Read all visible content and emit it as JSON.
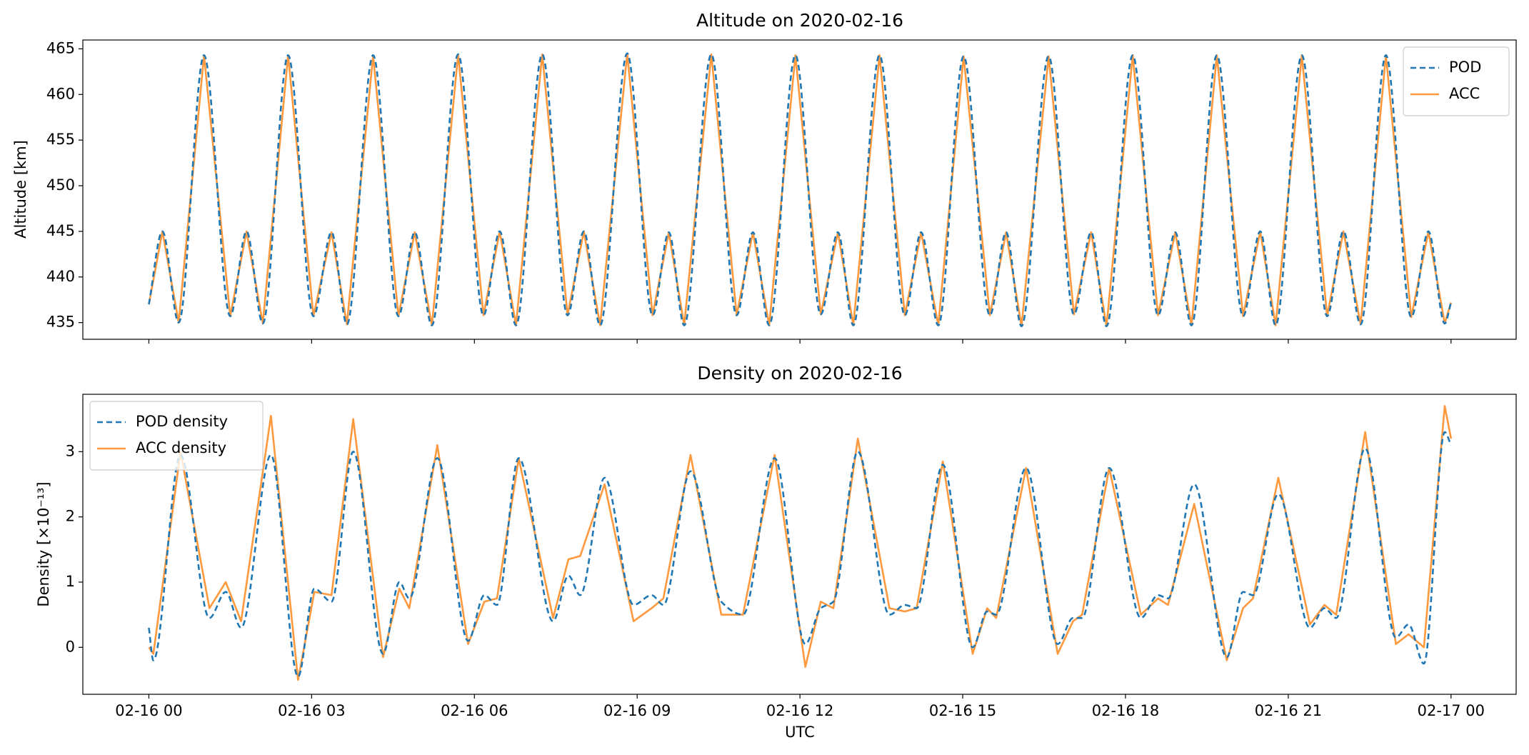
{
  "chart_data": [
    {
      "type": "line",
      "title": "Altitude on 2020-02-16",
      "ylabel": "Altitude [km]",
      "x": [
        "2020-02-16 00:00",
        "2020-02-16 00:15",
        "2020-02-16 00:33",
        "2020-02-16 01:01",
        "2020-02-16 01:30",
        "2020-02-16 01:48",
        "2020-02-16 02:06",
        "2020-02-16 02:34",
        "2020-02-16 03:02",
        "2020-02-16 03:22",
        "2020-02-16 03:39",
        "2020-02-16 04:08",
        "2020-02-16 04:36",
        "2020-02-16 04:54",
        "2020-02-16 05:13",
        "2020-02-16 05:42",
        "2020-02-16 06:10",
        "2020-02-16 06:28",
        "2020-02-16 06:46",
        "2020-02-16 07:15",
        "2020-02-16 07:43",
        "2020-02-16 08:01",
        "2020-02-16 08:19",
        "2020-02-16 08:49",
        "2020-02-16 09:17",
        "2020-02-16 09:35",
        "2020-02-16 09:52",
        "2020-02-16 10:22",
        "2020-02-16 10:50",
        "2020-02-16 11:08",
        "2020-02-16 11:26",
        "2020-02-16 11:55",
        "2020-02-16 12:23",
        "2020-02-16 12:42",
        "2020-02-16 12:59",
        "2020-02-16 13:28",
        "2020-02-16 13:56",
        "2020-02-16 14:14",
        "2020-02-16 14:33",
        "2020-02-16 15:01",
        "2020-02-16 15:30",
        "2020-02-16 15:48",
        "2020-02-16 16:05",
        "2020-02-16 16:35",
        "2020-02-16 17:03",
        "2020-02-16 17:22",
        "2020-02-16 17:39",
        "2020-02-16 18:08",
        "2020-02-16 18:36",
        "2020-02-16 18:55",
        "2020-02-16 19:13",
        "2020-02-16 19:41",
        "2020-02-16 20:10",
        "2020-02-16 20:29",
        "2020-02-16 20:46",
        "2020-02-16 21:15",
        "2020-02-16 21:43",
        "2020-02-16 22:01",
        "2020-02-16 22:20",
        "2020-02-16 22:48",
        "2020-02-16 23:16",
        "2020-02-16 23:35",
        "2020-02-16 23:53",
        "2020-02-17 00:00"
      ],
      "series": [
        {
          "name": "POD",
          "color": "#1f77b4",
          "dashed": true,
          "values": [
            437,
            445,
            435,
            464.3,
            435.7,
            445,
            434.9,
            464.3,
            435.7,
            444.9,
            434.8,
            464.3,
            435.7,
            444.9,
            434.7,
            464.4,
            435.8,
            445,
            434.7,
            464.4,
            435.8,
            445,
            434.7,
            464.5,
            435.8,
            444.9,
            434.7,
            464.4,
            435.8,
            444.9,
            434.7,
            464.3,
            435.9,
            444.9,
            434.7,
            464.3,
            435.8,
            444.9,
            434.7,
            464.2,
            435.8,
            444.9,
            434.6,
            464.2,
            435.9,
            444.9,
            434.6,
            464.3,
            435.8,
            444.9,
            434.7,
            464.3,
            435.7,
            445,
            434.7,
            464.3,
            435.7,
            445,
            434.8,
            464.3,
            435.6,
            445,
            434.9,
            437.2
          ]
        },
        {
          "name": "ACC",
          "color": "#ff7f0e",
          "dashed": false,
          "values": [
            437,
            445,
            435,
            464.3,
            435.7,
            445,
            434.9,
            464.3,
            435.7,
            444.9,
            434.8,
            464.3,
            435.7,
            444.9,
            434.7,
            464.4,
            435.8,
            445,
            434.7,
            464.4,
            435.8,
            445,
            434.7,
            464.5,
            435.8,
            444.9,
            434.7,
            464.4,
            435.8,
            444.9,
            434.7,
            464.3,
            435.9,
            444.9,
            434.7,
            464.3,
            435.8,
            444.9,
            434.7,
            464.2,
            435.8,
            444.9,
            434.6,
            464.2,
            435.9,
            444.9,
            434.6,
            464.3,
            435.8,
            444.9,
            434.7,
            464.3,
            435.7,
            445,
            434.7,
            464.3,
            435.7,
            445,
            434.8,
            464.3,
            435.6,
            445,
            434.9,
            437.2
          ]
        }
      ],
      "xlim": [
        "2020-02-15 22:47",
        "2020-02-17 01:12"
      ],
      "ylim": [
        433.17,
        465.97
      ],
      "yticks": [
        435,
        440,
        445,
        450,
        455,
        460,
        465
      ],
      "legend": "upper right"
    },
    {
      "type": "line",
      "title": "Density on 2020-02-16",
      "ylabel": "Density [×10⁻¹³]",
      "xlabel": "UTC",
      "x": [
        "2020-02-16 00:00",
        "2020-02-16 00:05",
        "2020-02-16 00:35",
        "2020-02-16 01:07",
        "2020-02-16 01:25",
        "2020-02-16 01:42",
        "2020-02-16 02:15",
        "2020-02-16 02:45",
        "2020-02-16 03:03",
        "2020-02-16 03:22",
        "2020-02-16 03:46",
        "2020-02-16 04:19",
        "2020-02-16 04:37",
        "2020-02-16 04:48",
        "2020-02-16 05:19",
        "2020-02-16 05:53",
        "2020-02-16 06:11",
        "2020-02-16 06:25",
        "2020-02-16 06:49",
        "2020-02-16 07:27",
        "2020-02-16 07:44",
        "2020-02-16 07:57",
        "2020-02-16 08:24",
        "2020-02-16 08:56",
        "2020-02-16 09:16",
        "2020-02-16 09:29",
        "2020-02-16 09:59",
        "2020-02-16 10:33",
        "2020-02-16 10:57",
        "2020-02-16 11:32",
        "2020-02-16 12:06",
        "2020-02-16 12:23",
        "2020-02-16 12:37",
        "2020-02-16 13:04",
        "2020-02-16 13:39",
        "2020-02-16 13:56",
        "2020-02-16 14:09",
        "2020-02-16 14:38",
        "2020-02-16 15:11",
        "2020-02-16 15:27",
        "2020-02-16 15:37",
        "2020-02-16 16:10",
        "2020-02-16 16:45",
        "2020-02-16 17:02",
        "2020-02-16 17:12",
        "2020-02-16 17:42",
        "2020-02-16 18:17",
        "2020-02-16 18:36",
        "2020-02-16 18:47",
        "2020-02-16 19:16",
        "2020-02-16 19:52",
        "2020-02-16 20:10",
        "2020-02-16 20:21",
        "2020-02-16 20:49",
        "2020-02-16 21:24",
        "2020-02-16 21:40",
        "2020-02-16 21:53",
        "2020-02-16 22:25",
        "2020-02-16 22:59",
        "2020-02-16 23:13",
        "2020-02-16 23:30",
        "2020-02-16 23:53",
        "2020-02-17 00:00"
      ],
      "series": [
        {
          "name": "POD density",
          "color": "#1f77b4",
          "dashed": true,
          "values": [
            0.3,
            -0.2,
            2.95,
            0.45,
            0.85,
            0.3,
            2.95,
            -0.45,
            0.9,
            0.7,
            3.0,
            -0.1,
            1.0,
            0.75,
            2.9,
            0.1,
            0.8,
            0.65,
            2.9,
            0.4,
            1.1,
            0.8,
            2.6,
            0.65,
            0.8,
            0.65,
            2.7,
            0.7,
            0.5,
            2.9,
            0.05,
            0.6,
            0.7,
            3.0,
            0.5,
            0.65,
            0.6,
            2.8,
            0.0,
            0.55,
            0.5,
            2.75,
            0.05,
            0.45,
            0.45,
            2.75,
            0.45,
            0.8,
            0.75,
            2.5,
            -0.15,
            0.85,
            0.8,
            2.35,
            0.3,
            0.6,
            0.45,
            3.05,
            0.15,
            0.35,
            -0.25,
            3.3,
            3.1
          ]
        },
        {
          "name": "ACC density",
          "color": "#ff7f0e",
          "dashed": false,
          "values": [
            0.0,
            -0.1,
            3.0,
            0.6,
            1.0,
            0.4,
            3.55,
            -0.5,
            0.85,
            0.8,
            3.5,
            -0.15,
            0.9,
            0.6,
            3.1,
            0.05,
            0.7,
            0.75,
            2.9,
            0.45,
            1.35,
            1.4,
            2.5,
            0.4,
            0.6,
            0.75,
            2.95,
            0.5,
            0.5,
            2.95,
            -0.3,
            0.7,
            0.6,
            3.2,
            0.6,
            0.55,
            0.6,
            2.85,
            -0.1,
            0.6,
            0.45,
            2.75,
            -0.1,
            0.4,
            0.5,
            2.75,
            0.5,
            0.75,
            0.65,
            2.2,
            -0.2,
            0.6,
            0.75,
            2.6,
            0.35,
            0.65,
            0.5,
            3.3,
            0.05,
            0.2,
            0.0,
            3.7,
            3.2
          ]
        }
      ],
      "xlim": [
        "2020-02-15 22:47",
        "2020-02-17 01:12"
      ],
      "ylim": [
        -0.72,
        3.88
      ],
      "yticks": [
        0,
        1,
        2,
        3
      ],
      "xticks": [
        {
          "value": "2020-02-16 00:00",
          "label": "02-16 00"
        },
        {
          "value": "2020-02-16 03:00",
          "label": "02-16 03"
        },
        {
          "value": "2020-02-16 06:00",
          "label": "02-16 06"
        },
        {
          "value": "2020-02-16 09:00",
          "label": "02-16 09"
        },
        {
          "value": "2020-02-16 12:00",
          "label": "02-16 12"
        },
        {
          "value": "2020-02-16 15:00",
          "label": "02-16 15"
        },
        {
          "value": "2020-02-16 18:00",
          "label": "02-16 18"
        },
        {
          "value": "2020-02-16 21:00",
          "label": "02-16 21"
        },
        {
          "value": "2020-02-17 00:00",
          "label": "02-17 00"
        }
      ],
      "legend": "upper left"
    }
  ]
}
